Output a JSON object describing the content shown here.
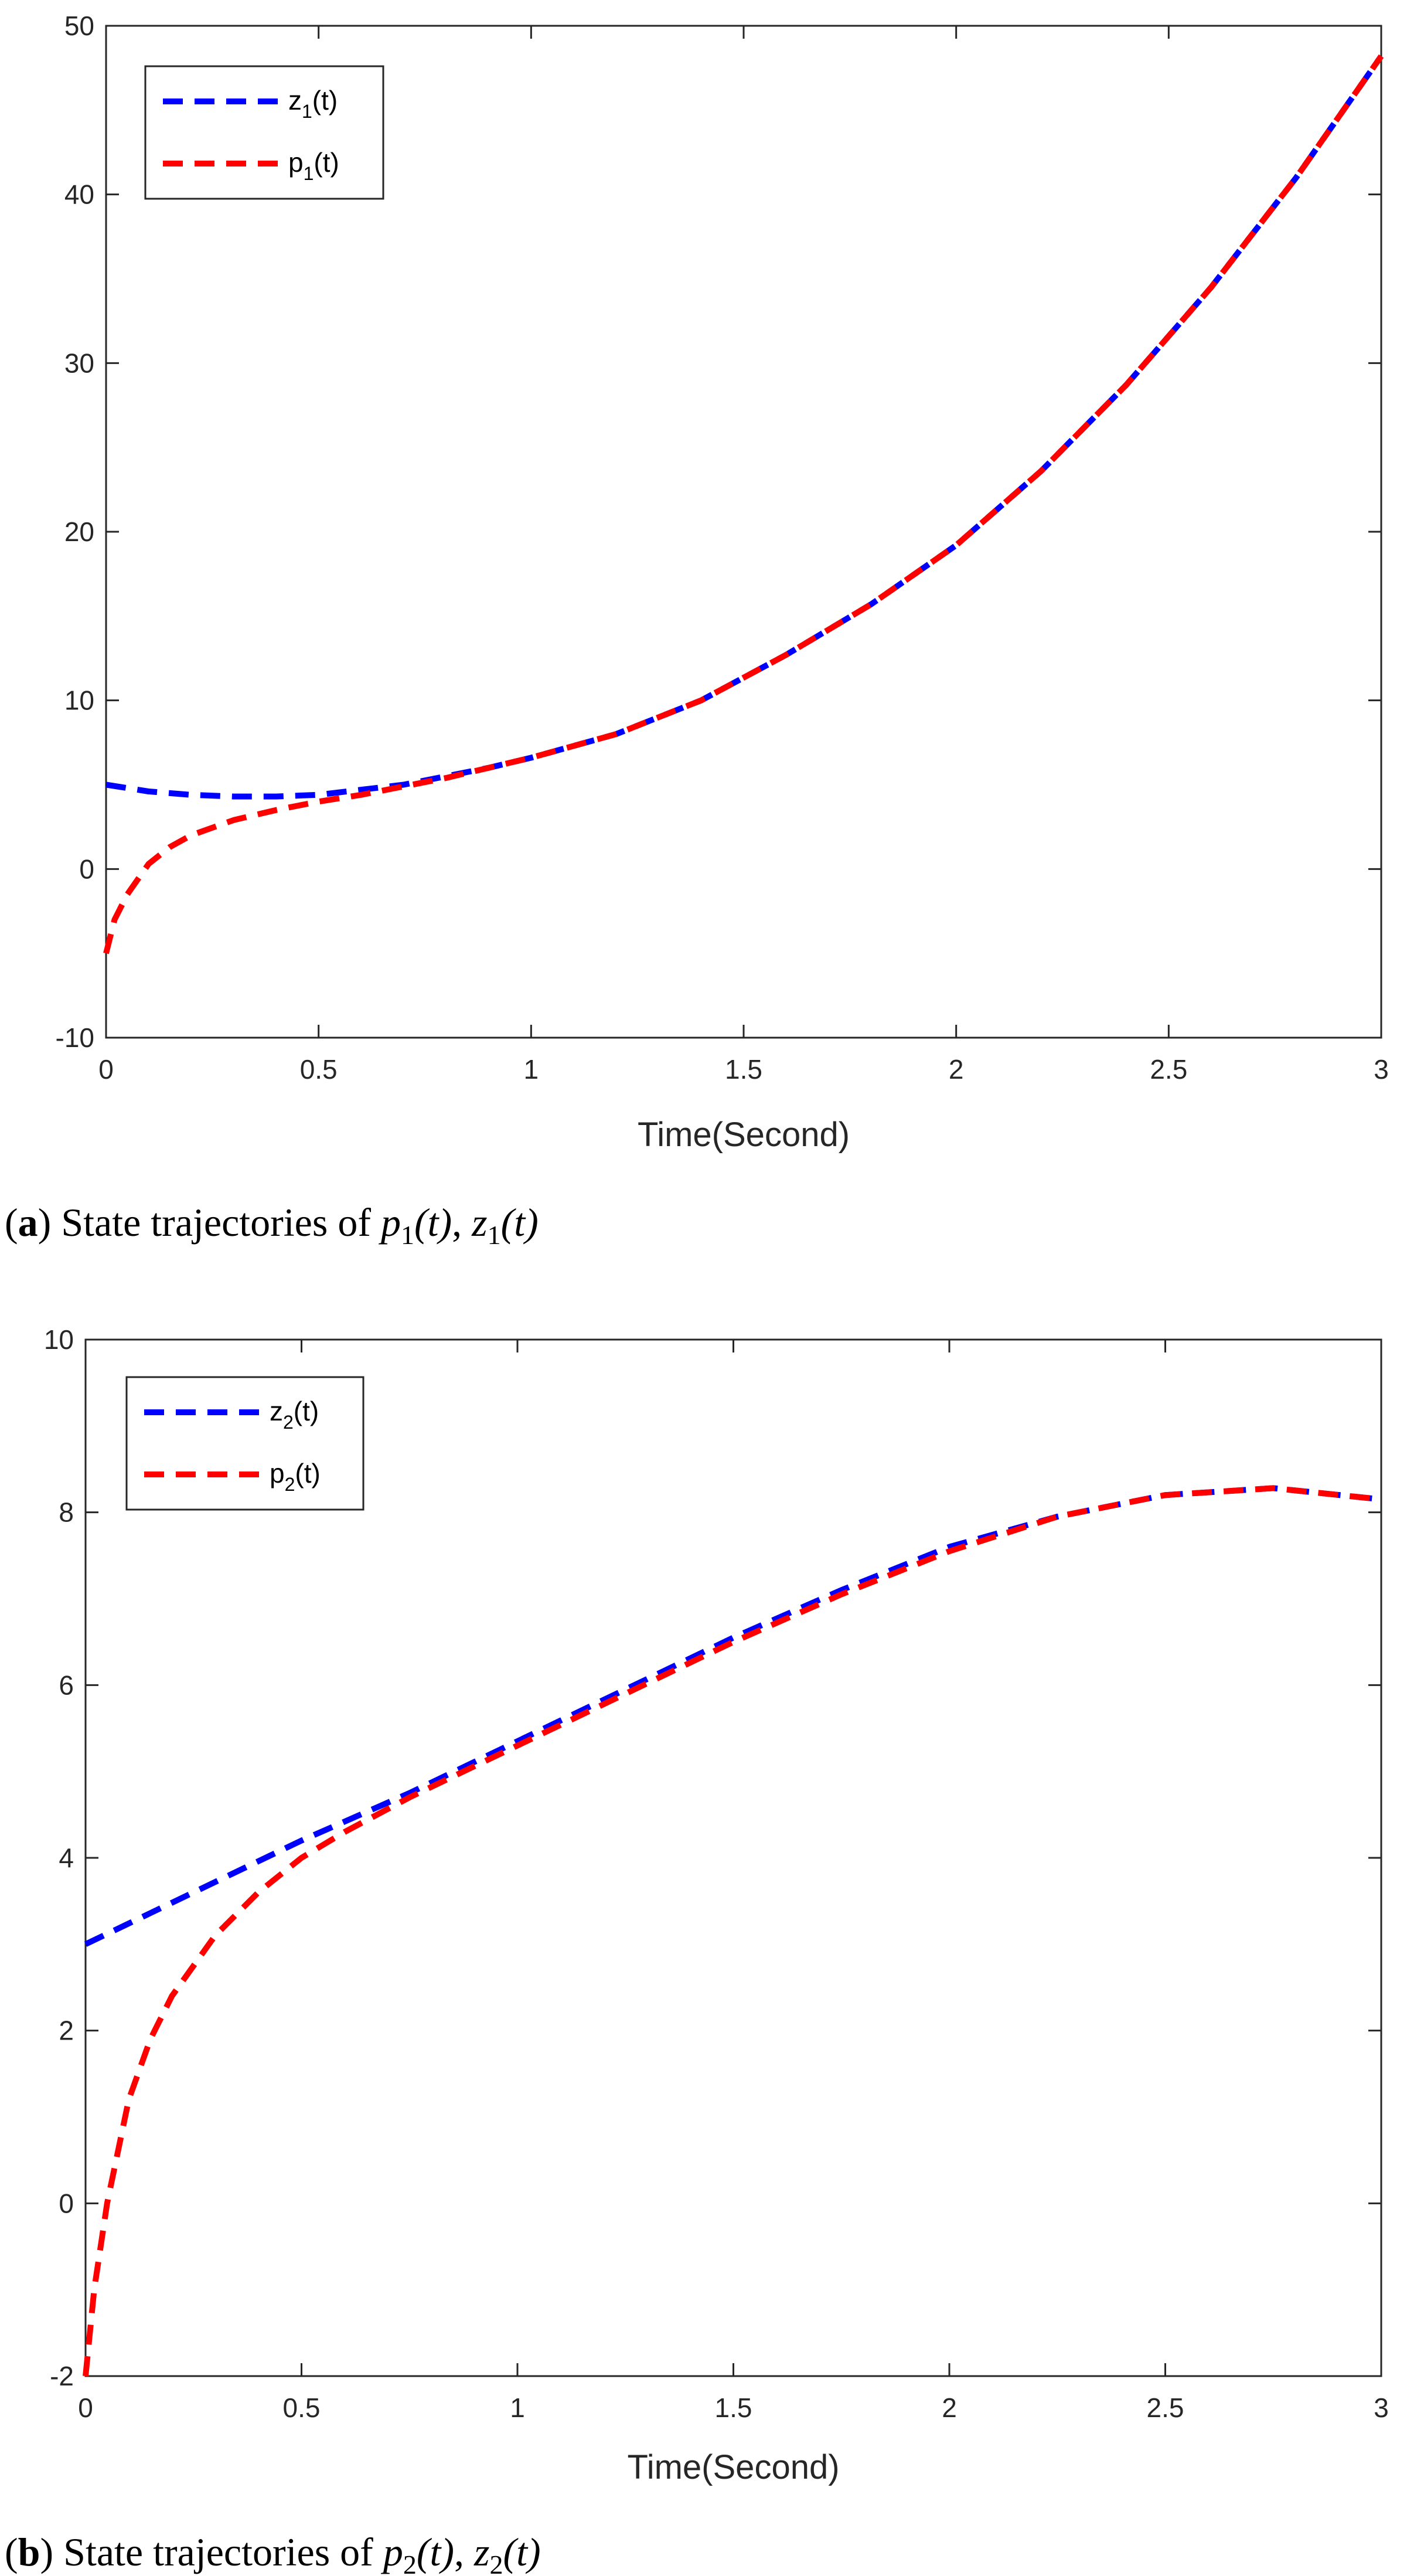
{
  "colors": {
    "blue": "#0000ff",
    "red": "#ff0000",
    "axis": "#262626"
  },
  "chart_data": [
    {
      "type": "line",
      "panel": "a",
      "title": "",
      "xlabel": "Time(Second)",
      "ylabel": "",
      "xlim": [
        0,
        3
      ],
      "ylim": [
        -10,
        50
      ],
      "xticks": [
        0,
        0.5,
        1,
        1.5,
        2,
        2.5,
        3
      ],
      "xtick_labels": [
        "0",
        "0.5",
        "1",
        "1.5",
        "2",
        "2.5",
        "3"
      ],
      "yticks": [
        -10,
        0,
        10,
        20,
        30,
        40,
        50
      ],
      "ytick_labels": [
        "-10",
        "0",
        "10",
        "20",
        "30",
        "40",
        "50"
      ],
      "grid": false,
      "legend": {
        "placement": "top-left",
        "entries": [
          {
            "base": "z",
            "sub": "1",
            "suffix": "(t)"
          },
          {
            "base": "p",
            "sub": "1",
            "suffix": "(t)"
          }
        ]
      },
      "caption": {
        "tag": "a",
        "text": "State trajectories of ",
        "math": [
          {
            "base": "p",
            "sub": "1",
            "arg": "(t)"
          },
          {
            "base": "z",
            "sub": "1",
            "arg": "(t)"
          }
        ]
      },
      "series": [
        {
          "name": "z1(t)",
          "color": "#0000ff",
          "style": "dashed",
          "x": [
            0,
            0.1,
            0.2,
            0.3,
            0.4,
            0.5,
            0.6,
            0.7,
            0.8,
            0.9,
            1.0,
            1.2,
            1.4,
            1.6,
            1.8,
            2.0,
            2.2,
            2.4,
            2.6,
            2.8,
            3.0
          ],
          "y": [
            5.0,
            4.6,
            4.4,
            4.3,
            4.3,
            4.4,
            4.7,
            5.0,
            5.5,
            6.0,
            6.6,
            8.0,
            10.0,
            12.7,
            15.7,
            19.2,
            23.6,
            28.7,
            34.5,
            41.0,
            48.2
          ]
        },
        {
          "name": "p1(t)",
          "color": "#ff0000",
          "style": "dashed",
          "x": [
            0,
            0.02,
            0.05,
            0.1,
            0.15,
            0.2,
            0.3,
            0.4,
            0.5,
            0.6,
            0.7,
            0.8,
            0.9,
            1.0,
            1.2,
            1.4,
            1.6,
            1.8,
            2.0,
            2.2,
            2.4,
            2.6,
            2.8,
            3.0
          ],
          "y": [
            -5.0,
            -3.0,
            -1.5,
            0.3,
            1.3,
            2.0,
            2.9,
            3.5,
            4.0,
            4.4,
            4.9,
            5.4,
            6.0,
            6.6,
            8.0,
            10.0,
            12.7,
            15.7,
            19.2,
            23.6,
            28.7,
            34.5,
            41.0,
            48.2
          ]
        }
      ]
    },
    {
      "type": "line",
      "panel": "b",
      "title": "",
      "xlabel": "Time(Second)",
      "ylabel": "",
      "xlim": [
        0,
        3
      ],
      "ylim": [
        -2,
        10
      ],
      "xticks": [
        0,
        0.5,
        1,
        1.5,
        2,
        2.5,
        3
      ],
      "xtick_labels": [
        "0",
        "0.5",
        "1",
        "1.5",
        "2",
        "2.5",
        "3"
      ],
      "yticks": [
        -2,
        0,
        2,
        4,
        6,
        8,
        10
      ],
      "ytick_labels": [
        "-2",
        "0",
        "2",
        "4",
        "6",
        "8",
        "10"
      ],
      "grid": false,
      "legend": {
        "placement": "top-left",
        "entries": [
          {
            "base": "z",
            "sub": "2",
            "suffix": "(t)"
          },
          {
            "base": "p",
            "sub": "2",
            "suffix": "(t)"
          }
        ]
      },
      "caption": {
        "tag": "b",
        "text": "State trajectories of ",
        "math": [
          {
            "base": "p",
            "sub": "2",
            "arg": "(t)"
          },
          {
            "base": "z",
            "sub": "2",
            "arg": "(t)"
          }
        ]
      },
      "series": [
        {
          "name": "z2(t)",
          "color": "#0000ff",
          "style": "dashed",
          "x": [
            0,
            0.25,
            0.5,
            0.75,
            1.0,
            1.25,
            1.5,
            1.75,
            2.0,
            2.25,
            2.5,
            2.75,
            3.0
          ],
          "y": [
            3.0,
            3.6,
            4.2,
            4.75,
            5.35,
            5.95,
            6.55,
            7.1,
            7.6,
            7.95,
            8.2,
            8.28,
            8.15
          ]
        },
        {
          "name": "p2(t)",
          "color": "#ff0000",
          "style": "dashed",
          "x": [
            0,
            0.02,
            0.05,
            0.1,
            0.15,
            0.2,
            0.3,
            0.4,
            0.5,
            0.6,
            0.75,
            1.0,
            1.25,
            1.5,
            1.75,
            2.0,
            2.25,
            2.5,
            2.75,
            3.0
          ],
          "y": [
            -2.0,
            -1.0,
            0.0,
            1.2,
            1.9,
            2.4,
            3.1,
            3.6,
            4.0,
            4.3,
            4.7,
            5.3,
            5.9,
            6.5,
            7.05,
            7.55,
            7.95,
            8.2,
            8.28,
            8.15
          ]
        }
      ]
    }
  ]
}
